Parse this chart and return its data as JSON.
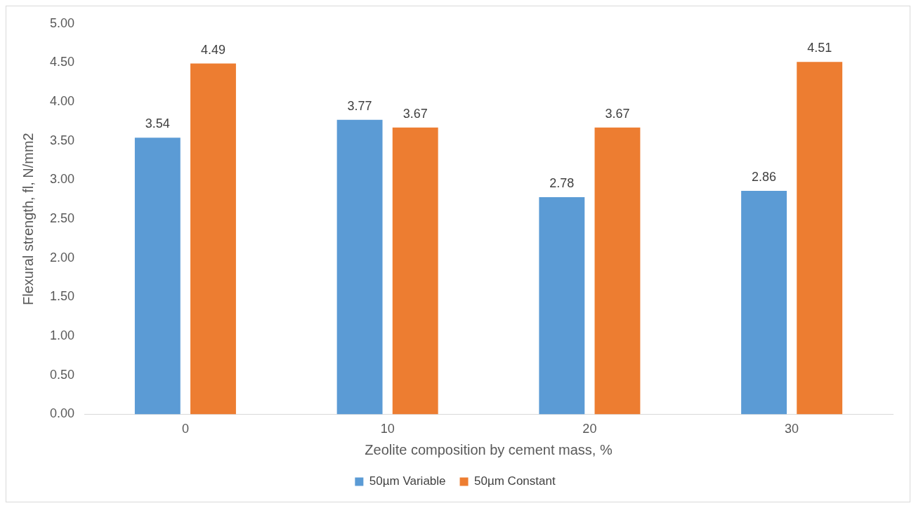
{
  "chart_data": {
    "type": "bar",
    "xlabel": "Zeolite composition by cement mass, %",
    "ylabel": "Flexural strength, fl, N/mm2",
    "categories": [
      "0",
      "10",
      "20",
      "30"
    ],
    "series": [
      {
        "name": "50µm Variable",
        "color": "#5b9bd5",
        "values": [
          3.54,
          3.77,
          2.78,
          2.86
        ]
      },
      {
        "name": "50µm Constant",
        "color": "#ed7d31",
        "values": [
          4.49,
          3.67,
          3.67,
          4.51
        ]
      }
    ],
    "ylim": [
      0,
      5
    ],
    "yticks": [
      {
        "value": 0,
        "label": "0.00"
      },
      {
        "value": 0.5,
        "label": "0.50"
      },
      {
        "value": 1,
        "label": "1.00"
      },
      {
        "value": 1.5,
        "label": "1.50"
      },
      {
        "value": 2,
        "label": "2.00"
      },
      {
        "value": 2.5,
        "label": "2.50"
      },
      {
        "value": 3,
        "label": "3.00"
      },
      {
        "value": 3.5,
        "label": "3.50"
      },
      {
        "value": 4,
        "label": "4.00"
      },
      {
        "value": 4.5,
        "label": "4.50"
      },
      {
        "value": 5,
        "label": "5.00"
      }
    ],
    "grid": false,
    "legend": "bottom",
    "data_labels": true
  }
}
